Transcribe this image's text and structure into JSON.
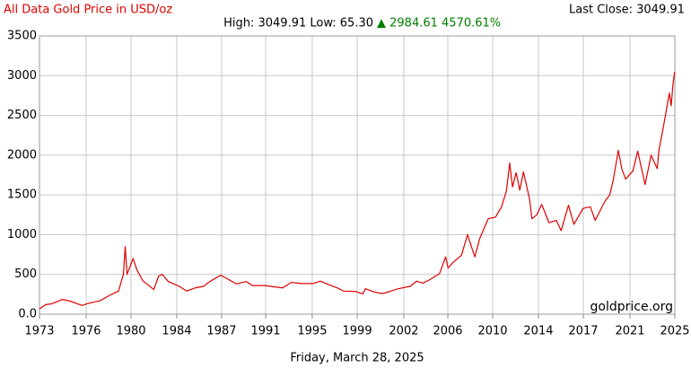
{
  "chart_data": {
    "type": "line",
    "title": "All Data Gold Price in USD/oz",
    "high_low": "High: 3049.91 Low: 65.30",
    "change": "▲ 2984.61 4570.61%",
    "last_close": "Last Close: 3049.91",
    "watermark": "goldprice.org",
    "date": "Friday, March 28, 2025",
    "color": "#e00000",
    "grid": true,
    "x": [
      1973.0,
      1973.5,
      1974.0,
      1974.9,
      1975.5,
      1976.5,
      1977.0,
      1978.0,
      1978.8,
      1979.5,
      1979.9,
      1980.05,
      1980.2,
      1980.7,
      1981.0,
      1981.5,
      1982.4,
      1982.8,
      1983.1,
      1983.6,
      1984.5,
      1985.1,
      1985.8,
      1986.5,
      1987.0,
      1987.9,
      1988.5,
      1989.2,
      1990.0,
      1990.5,
      1991.5,
      1992.5,
      1993.0,
      1993.7,
      1994.5,
      1995.5,
      1996.1,
      1996.8,
      1997.5,
      1998.0,
      1999.0,
      1999.6,
      1999.8,
      2000.5,
      2001.2,
      2001.8,
      2002.5,
      2003.5,
      2004.0,
      2004.5,
      2005.0,
      2005.9,
      2006.4,
      2006.6,
      2007.0,
      2007.7,
      2008.2,
      2008.8,
      2009.2,
      2009.9,
      2010.5,
      2011.0,
      2011.4,
      2011.67,
      2011.9,
      2012.2,
      2012.5,
      2012.8,
      2013.3,
      2013.5,
      2013.9,
      2014.3,
      2014.9,
      2015.5,
      2015.9,
      2016.5,
      2016.95,
      2017.7,
      2018.3,
      2018.7,
      2019.5,
      2019.9,
      2020.2,
      2020.6,
      2020.9,
      2021.2,
      2021.8,
      2022.2,
      2022.8,
      2023.3,
      2023.8,
      2023.95,
      2024.3,
      2024.8,
      2024.95,
      2025.1,
      2025.24
    ],
    "values": [
      65,
      120,
      130,
      185,
      165,
      110,
      135,
      170,
      240,
      290,
      500,
      850,
      500,
      700,
      560,
      420,
      310,
      480,
      500,
      410,
      350,
      290,
      330,
      350,
      410,
      490,
      440,
      380,
      410,
      360,
      360,
      340,
      330,
      400,
      385,
      385,
      415,
      370,
      330,
      290,
      285,
      255,
      320,
      280,
      258,
      285,
      320,
      350,
      415,
      390,
      425,
      510,
      720,
      580,
      650,
      740,
      1000,
      720,
      950,
      1200,
      1220,
      1350,
      1550,
      1900,
      1600,
      1780,
      1560,
      1790,
      1450,
      1200,
      1250,
      1380,
      1150,
      1180,
      1050,
      1370,
      1130,
      1330,
      1350,
      1180,
      1420,
      1500,
      1700,
      2060,
      1820,
      1700,
      1800,
      2050,
      1630,
      2000,
      1830,
      2070,
      2350,
      2780,
      2620,
      2900,
      3049.91
    ],
    "xlim": [
      1973.0,
      2025.25
    ],
    "xticks": [
      {
        "value": 1973.0,
        "label": "1973"
      },
      {
        "value": 1976.84,
        "label": "1976"
      },
      {
        "value": 1980.53,
        "label": "1980"
      },
      {
        "value": 1984.29,
        "label": "1984"
      },
      {
        "value": 1987.98,
        "label": "1987"
      },
      {
        "value": 1991.6,
        "label": "1991"
      },
      {
        "value": 1995.43,
        "label": "1995"
      },
      {
        "value": 1999.13,
        "label": "1999"
      },
      {
        "value": 2002.96,
        "label": "2002"
      },
      {
        "value": 2006.58,
        "label": "2006"
      },
      {
        "value": 2010.27,
        "label": "2010"
      },
      {
        "value": 2014.03,
        "label": "2014"
      },
      {
        "value": 2017.72,
        "label": "2017"
      },
      {
        "value": 2021.56,
        "label": "2021"
      },
      {
        "value": 2025.25,
        "label": "2025"
      }
    ],
    "ylim": [
      0,
      3500
    ],
    "yticks": [
      {
        "value": 0,
        "label": "0.0"
      },
      500,
      1000,
      1500,
      2000,
      2500,
      3000,
      3500
    ]
  }
}
